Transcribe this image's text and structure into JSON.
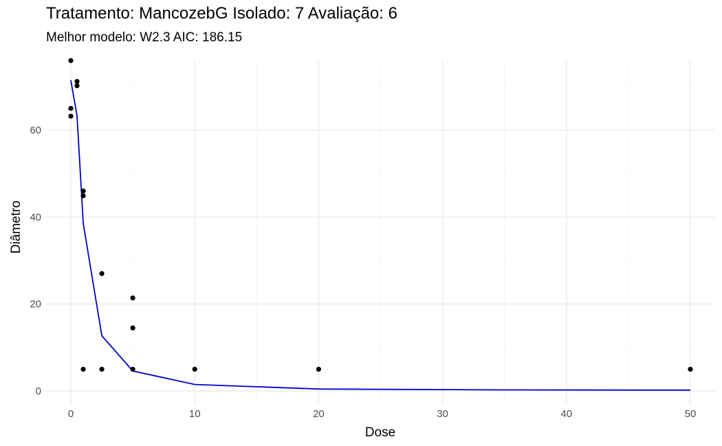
{
  "chart_data": {
    "type": "scatter",
    "title": "Tratamento: MancozebG Isolado: 7 Avaliação: 6",
    "subtitle": "Melhor modelo: W2.3 AIC: 186.15",
    "xlabel": "Dose",
    "ylabel": "Diâmetro",
    "xlim": [
      -2,
      52
    ],
    "ylim": [
      -3,
      76
    ],
    "x_ticks": [
      0,
      10,
      20,
      30,
      40,
      50
    ],
    "y_ticks": [
      0,
      20,
      40,
      60
    ],
    "x_tick_labels": [
      "0",
      "10",
      "20",
      "30",
      "40",
      "50"
    ],
    "y_tick_labels": [
      "0",
      "20",
      "40",
      "60"
    ],
    "grid": true,
    "colors": {
      "points": "#000000",
      "fit_line": "#0000cc"
    },
    "points": [
      {
        "x": 0,
        "y": 76
      },
      {
        "x": 0,
        "y": 65
      },
      {
        "x": 0,
        "y": 63.2
      },
      {
        "x": 0.5,
        "y": 71.2
      },
      {
        "x": 0.5,
        "y": 70.2
      },
      {
        "x": 1,
        "y": 46
      },
      {
        "x": 1,
        "y": 44.9
      },
      {
        "x": 1,
        "y": 5
      },
      {
        "x": 2.5,
        "y": 27
      },
      {
        "x": 2.5,
        "y": 5
      },
      {
        "x": 5,
        "y": 21.4
      },
      {
        "x": 5,
        "y": 14.5
      },
      {
        "x": 5,
        "y": 5
      },
      {
        "x": 10,
        "y": 5
      },
      {
        "x": 20,
        "y": 5
      },
      {
        "x": 50,
        "y": 5
      }
    ],
    "fit_line": [
      {
        "x": 0,
        "y": 71.5
      },
      {
        "x": 0.5,
        "y": 63.3
      },
      {
        "x": 1,
        "y": 38.5
      },
      {
        "x": 2.5,
        "y": 12.7
      },
      {
        "x": 5,
        "y": 4.6
      },
      {
        "x": 10,
        "y": 1.5
      },
      {
        "x": 20,
        "y": 0.45
      },
      {
        "x": 35,
        "y": 0.25
      },
      {
        "x": 50,
        "y": 0.2
      }
    ]
  }
}
